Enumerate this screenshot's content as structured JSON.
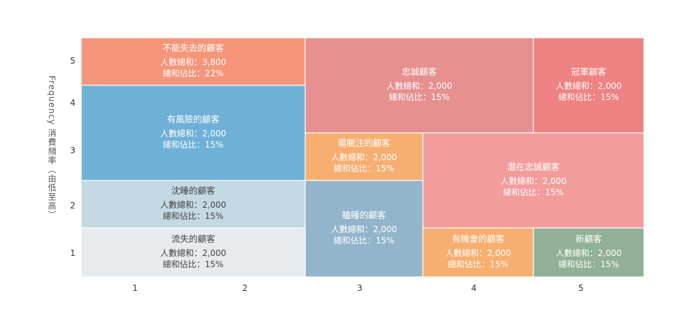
{
  "chart_data": {
    "type": "treemap-grid",
    "ylabel": "Frequency 消費頻率（由低至高）",
    "x_ticks": [
      "1",
      "2",
      "3",
      "4",
      "5"
    ],
    "y_ticks": [
      "5",
      "4",
      "3",
      "2",
      "1"
    ],
    "segments": [
      {
        "name": "不能失去的顧客",
        "lines": [
          "人數總和：3,800",
          "總和佔比：22%"
        ],
        "color": "#F5967B",
        "dark": false,
        "x": [
          1,
          3
        ],
        "y": [
          5,
          5
        ]
      },
      {
        "name": "忠誠顧客",
        "lines": [
          "人數總和：2,000",
          "總和佔比：15%"
        ],
        "color": "#E69090",
        "dark": false,
        "x": [
          3,
          5
        ],
        "y": [
          4,
          5
        ]
      },
      {
        "name": "冠軍顧客",
        "lines": [
          "人數總和：2,000",
          "總和佔比：15%"
        ],
        "color": "#EF8282",
        "dark": false,
        "x": [
          5,
          6
        ],
        "y": [
          4,
          5
        ]
      },
      {
        "name": "有風險的顧客",
        "lines": [
          "人數總和：2,000",
          "總和佔比：15%"
        ],
        "color": "#6FB0D6",
        "dark": false,
        "x": [
          1,
          3
        ],
        "y": [
          3,
          4
        ]
      },
      {
        "name": "需關注的顧客",
        "lines": [
          "人數總和：2,000",
          "總和佔比：15%"
        ],
        "color": "#F6AF70",
        "dark": false,
        "x": [
          3,
          4
        ],
        "y": [
          3,
          3
        ]
      },
      {
        "name": "潛在忠誠顧客",
        "lines": [
          "人數總和：2,000",
          "總和佔比：15%"
        ],
        "color": "#F29C9C",
        "dark": false,
        "x": [
          4,
          6
        ],
        "y": [
          2,
          3
        ]
      },
      {
        "name": "沈睡的顧客",
        "lines": [
          "人數總和：2,000",
          "總和佔比：15%"
        ],
        "color": "#C5D9E4",
        "dark": true,
        "x": [
          1,
          3
        ],
        "y": [
          2,
          2
        ]
      },
      {
        "name": "瞌睡的顧客",
        "lines": [
          "人數總和：2,000",
          "總和佔比：15%"
        ],
        "color": "#92B5CB",
        "dark": false,
        "x": [
          3,
          4
        ],
        "y": [
          1,
          2
        ]
      },
      {
        "name": "流失的顧客",
        "lines": [
          "人數總和：2,000",
          "總和佔比：15%"
        ],
        "color": "#E7EBEE",
        "dark": true,
        "x": [
          1,
          3
        ],
        "y": [
          1,
          1
        ]
      },
      {
        "name": "有機會的顧客",
        "lines": [
          "人數總和：2,000",
          "總和佔比：15%"
        ],
        "color": "#F6AF70",
        "dark": false,
        "x": [
          4,
          5
        ],
        "y": [
          1,
          1
        ]
      },
      {
        "name": "新顧客",
        "lines": [
          "人數總和：2,000",
          "總和佔比：15%"
        ],
        "color": "#92B096",
        "dark": false,
        "x": [
          5,
          6
        ],
        "y": [
          1,
          1
        ]
      }
    ]
  }
}
